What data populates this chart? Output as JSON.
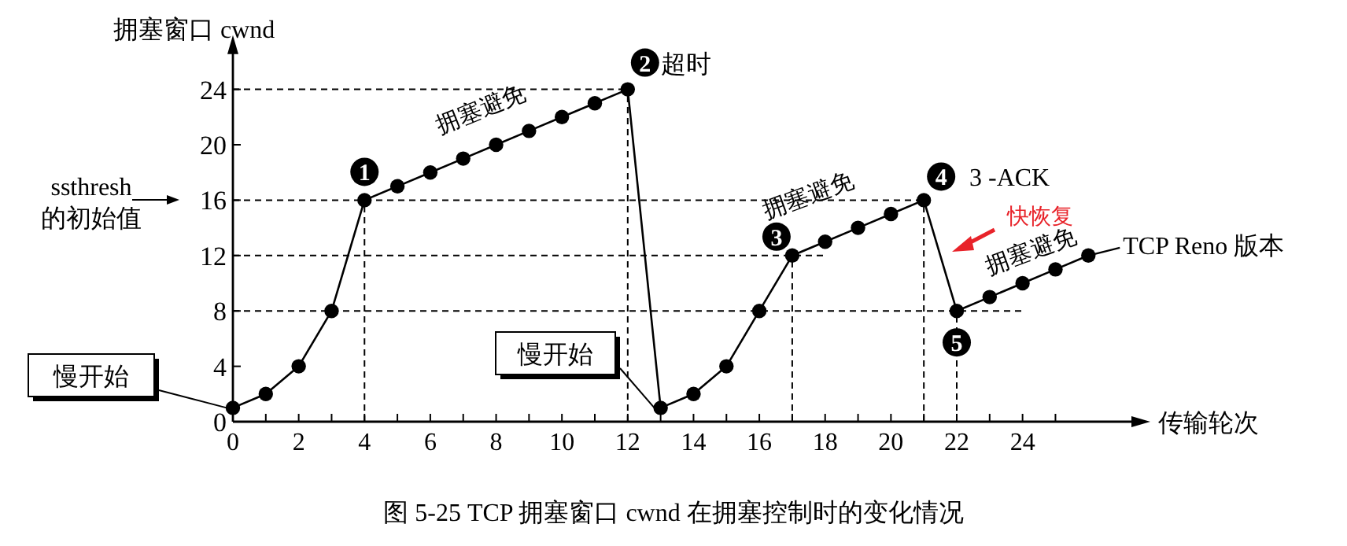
{
  "chart_data": {
    "type": "line",
    "title": "图 5-25    TCP 拥塞窗口 cwnd 在拥塞控制时的变化情况",
    "xlabel": "传输轮次",
    "ylabel": "拥塞窗口 cwnd",
    "x": [
      0,
      1,
      2,
      3,
      4,
      5,
      6,
      7,
      8,
      9,
      10,
      11,
      12,
      13,
      14,
      15,
      16,
      17,
      18,
      19,
      20,
      21,
      22,
      23,
      24,
      25,
      26
    ],
    "series": [
      {
        "color": "#000000",
        "values": [
          1,
          2,
          4,
          8,
          16,
          17,
          18,
          19,
          20,
          21,
          22,
          23,
          24,
          1,
          2,
          4,
          8,
          12,
          13,
          14,
          15,
          16,
          8,
          9,
          10,
          11,
          12
        ]
      }
    ],
    "xlim": [
      0,
      27.5
    ],
    "ylim": [
      0,
      27
    ],
    "xticks": [
      0,
      {
        "value": 1,
        "label": null
      },
      2,
      {
        "value": 3,
        "label": null
      },
      4,
      {
        "value": 5,
        "label": null
      },
      6,
      {
        "value": 7,
        "label": null
      },
      8,
      {
        "value": 9,
        "label": null
      },
      10,
      {
        "value": 11,
        "label": null
      },
      12,
      {
        "value": 13,
        "label": null
      },
      14,
      {
        "value": 15,
        "label": null
      },
      16,
      {
        "value": 17,
        "label": null
      },
      18,
      {
        "value": 19,
        "label": null
      },
      20,
      {
        "value": 21,
        "label": null
      },
      22,
      {
        "value": 23,
        "label": null
      },
      24,
      {
        "value": 25,
        "label": null
      }
    ],
    "yticks": [
      0,
      4,
      8,
      12,
      16,
      20,
      24
    ],
    "marker": "circle",
    "line_style": "solid",
    "grid": false,
    "annotations": [
      {
        "text": "1",
        "x": 4,
        "y": 16
      },
      {
        "text": "2",
        "x": 12,
        "y": 24
      },
      "超时",
      {
        "text": "3",
        "x": 17,
        "y": 12
      },
      {
        "text": "4",
        "x": 21,
        "y": 16
      },
      "3 -ACK",
      {
        "text": "5",
        "x": 22,
        "y": 8
      },
      "快恢复",
      {
        "text": "拥塞避免",
        "x": 8,
        "y": 20
      },
      {
        "text": "拥塞避免",
        "x": 19,
        "y": 14
      },
      {
        "text": "拥塞避免",
        "x": 24,
        "y": 10
      },
      {
        "text": "慢开始",
        "x": 0,
        "y": 1
      },
      {
        "text": "慢开始",
        "x": 13,
        "y": 1
      },
      {
        "text": "TCP Reno 版本",
        "x": 26,
        "y": 12
      },
      "ssthresh\n的初始值"
    ],
    "ref_lines": [
      {
        "axis": "y",
        "value": 24,
        "line_style": "dashed"
      },
      {
        "axis": "y",
        "value": 16,
        "line_style": "dashed"
      },
      {
        "axis": "y",
        "value": 12,
        "line_style": "dashed"
      },
      {
        "axis": "y",
        "value": 8,
        "line_style": "dashed"
      },
      {
        "axis": "x",
        "value": 4,
        "line_style": "dashed"
      },
      {
        "axis": "x",
        "value": 12,
        "line_style": "dashed"
      },
      {
        "axis": "x",
        "value": 17,
        "line_style": "dashed"
      },
      {
        "axis": "x",
        "value": 21,
        "line_style": "dashed"
      },
      {
        "axis": "x",
        "value": 22,
        "line_style": "dashed"
      }
    ]
  }
}
